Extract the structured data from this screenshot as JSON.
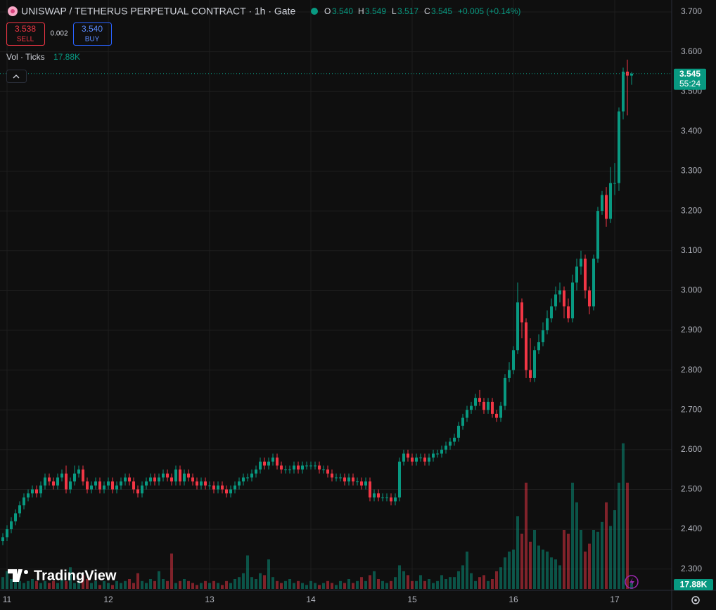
{
  "header": {
    "title": "UNISWAP / TETHERUS PERPETUAL CONTRACT · 1h · Gate",
    "o_label": "O",
    "o": "3.540",
    "h_label": "H",
    "h": "3.549",
    "l_label": "L",
    "l": "3.517",
    "c_label": "C",
    "c": "3.545",
    "change": "+0.005 (+0.14%)",
    "sell_price": "3.538",
    "sell": "SELL",
    "spread": "0.002",
    "buy_price": "3.540",
    "buy": "BUY",
    "vol_label": "Vol · Ticks",
    "vol_value": "17.88K"
  },
  "countdown": "55:24",
  "volume_axis_label": "17.88K",
  "logo": "TradingView",
  "chart_data": {
    "type": "candlestick",
    "up_color": "#089981",
    "down_color": "#f23645",
    "grid": true,
    "ylim": [
      2.25,
      3.73
    ],
    "yticks": [
      {
        "value": 2.3,
        "label": "2.300"
      },
      {
        "value": 2.4,
        "label": "2.400"
      },
      {
        "value": 2.5,
        "label": "2.500"
      },
      {
        "value": 2.6,
        "label": "2.600"
      },
      {
        "value": 2.7,
        "label": "2.700"
      },
      {
        "value": 2.8,
        "label": "2.800"
      },
      {
        "value": 2.9,
        "label": "2.900"
      },
      {
        "value": 3.0,
        "label": "3.000"
      },
      {
        "value": 3.1,
        "label": "3.100"
      },
      {
        "value": 3.2,
        "label": "3.200"
      },
      {
        "value": 3.3,
        "label": "3.300"
      },
      {
        "value": 3.4,
        "label": "3.400"
      },
      {
        "value": 3.5,
        "label": "3.500"
      },
      {
        "value": 3.6,
        "label": "3.600"
      },
      {
        "value": 3.7,
        "label": "3.700"
      }
    ],
    "xticks": [
      {
        "value": 1,
        "label": "11"
      },
      {
        "value": 25,
        "label": "12"
      },
      {
        "value": 49,
        "label": "13"
      },
      {
        "value": 73,
        "label": "14"
      },
      {
        "value": 97,
        "label": "15"
      },
      {
        "value": 121,
        "label": "16"
      },
      {
        "value": 145,
        "label": "17"
      }
    ],
    "open": [
      2.37,
      2.38,
      2.4,
      2.42,
      2.44,
      2.46,
      2.48,
      2.49,
      2.5,
      2.49,
      2.51,
      2.53,
      2.52,
      2.51,
      2.53,
      2.54,
      2.5,
      2.52,
      2.54,
      2.55,
      2.52,
      2.5,
      2.51,
      2.52,
      2.5,
      2.51,
      2.52,
      2.5,
      2.51,
      2.52,
      2.53,
      2.52,
      2.5,
      2.49,
      2.51,
      2.52,
      2.53,
      2.52,
      2.53,
      2.54,
      2.53,
      2.52,
      2.55,
      2.52,
      2.54,
      2.53,
      2.52,
      2.51,
      2.52,
      2.51,
      2.51,
      2.5,
      2.51,
      2.5,
      2.49,
      2.5,
      2.51,
      2.52,
      2.53,
      2.53,
      2.54,
      2.55,
      2.57,
      2.56,
      2.57,
      2.58,
      2.56,
      2.55,
      2.55,
      2.55,
      2.56,
      2.55,
      2.56,
      2.56,
      2.56,
      2.56,
      2.55,
      2.55,
      2.54,
      2.53,
      2.53,
      2.53,
      2.52,
      2.53,
      2.52,
      2.52,
      2.51,
      2.52,
      2.48,
      2.49,
      2.48,
      2.48,
      2.48,
      2.47,
      2.48,
      2.57,
      2.59,
      2.58,
      2.57,
      2.58,
      2.58,
      2.57,
      2.58,
      2.59,
      2.59,
      2.6,
      2.61,
      2.62,
      2.63,
      2.66,
      2.68,
      2.7,
      2.71,
      2.73,
      2.72,
      2.7,
      2.72,
      2.69,
      2.68,
      2.71,
      2.78,
      2.8,
      2.85,
      2.97,
      2.92,
      2.8,
      2.78,
      2.85,
      2.87,
      2.9,
      2.93,
      2.96,
      2.99,
      3.0,
      2.96,
      2.93,
      3.02,
      3.06,
      3.08,
      3.0,
      2.96,
      3.08,
      3.2,
      3.24,
      3.18,
      3.27,
      3.27,
      3.45,
      3.55,
      3.54
    ],
    "high": [
      2.39,
      2.41,
      2.43,
      2.45,
      2.47,
      2.49,
      2.5,
      2.51,
      2.51,
      2.52,
      2.54,
      2.54,
      2.53,
      2.54,
      2.55,
      2.56,
      2.53,
      2.56,
      2.56,
      2.56,
      2.53,
      2.52,
      2.53,
      2.53,
      2.52,
      2.53,
      2.53,
      2.52,
      2.53,
      2.54,
      2.54,
      2.53,
      2.51,
      2.52,
      2.53,
      2.54,
      2.54,
      2.54,
      2.55,
      2.55,
      2.54,
      2.56,
      2.56,
      2.55,
      2.55,
      2.54,
      2.53,
      2.53,
      2.53,
      2.52,
      2.52,
      2.52,
      2.52,
      2.51,
      2.51,
      2.52,
      2.53,
      2.54,
      2.54,
      2.55,
      2.56,
      2.58,
      2.58,
      2.58,
      2.59,
      2.59,
      2.57,
      2.56,
      2.56,
      2.57,
      2.57,
      2.57,
      2.57,
      2.57,
      2.57,
      2.57,
      2.56,
      2.56,
      2.55,
      2.54,
      2.54,
      2.54,
      2.54,
      2.54,
      2.53,
      2.53,
      2.53,
      2.53,
      2.5,
      2.5,
      2.49,
      2.49,
      2.49,
      2.49,
      2.58,
      2.6,
      2.6,
      2.59,
      2.59,
      2.59,
      2.59,
      2.59,
      2.6,
      2.6,
      2.61,
      2.62,
      2.63,
      2.64,
      2.67,
      2.69,
      2.71,
      2.72,
      2.74,
      2.75,
      2.73,
      2.73,
      2.73,
      2.7,
      2.72,
      2.79,
      2.82,
      2.86,
      3.02,
      2.98,
      2.93,
      2.88,
      2.86,
      2.89,
      2.92,
      2.95,
      2.98,
      3.01,
      3.02,
      3.01,
      2.98,
      3.04,
      3.08,
      3.1,
      3.09,
      3.01,
      3.09,
      3.21,
      3.25,
      3.26,
      3.31,
      3.32,
      3.46,
      3.56,
      3.58,
      3.549
    ],
    "low": [
      2.36,
      2.37,
      2.39,
      2.41,
      2.43,
      2.45,
      2.47,
      2.48,
      2.48,
      2.48,
      2.5,
      2.51,
      2.5,
      2.5,
      2.52,
      2.49,
      2.49,
      2.51,
      2.53,
      2.51,
      2.49,
      2.49,
      2.5,
      2.49,
      2.49,
      2.5,
      2.49,
      2.49,
      2.5,
      2.51,
      2.51,
      2.49,
      2.48,
      2.48,
      2.5,
      2.51,
      2.51,
      2.51,
      2.52,
      2.52,
      2.51,
      2.51,
      2.51,
      2.51,
      2.52,
      2.51,
      2.5,
      2.5,
      2.5,
      2.5,
      2.49,
      2.49,
      2.49,
      2.48,
      2.48,
      2.49,
      2.5,
      2.51,
      2.52,
      2.52,
      2.53,
      2.54,
      2.55,
      2.55,
      2.56,
      2.55,
      2.54,
      2.54,
      2.54,
      2.54,
      2.54,
      2.54,
      2.55,
      2.55,
      2.55,
      2.54,
      2.54,
      2.53,
      2.52,
      2.52,
      2.52,
      2.51,
      2.51,
      2.51,
      2.51,
      2.5,
      2.5,
      2.47,
      2.47,
      2.47,
      2.47,
      2.47,
      2.46,
      2.46,
      2.47,
      2.56,
      2.57,
      2.56,
      2.56,
      2.57,
      2.56,
      2.56,
      2.57,
      2.58,
      2.58,
      2.59,
      2.6,
      2.61,
      2.62,
      2.65,
      2.67,
      2.69,
      2.7,
      2.71,
      2.69,
      2.69,
      2.68,
      2.67,
      2.67,
      2.7,
      2.77,
      2.79,
      2.84,
      2.88,
      2.78,
      2.77,
      2.77,
      2.84,
      2.86,
      2.89,
      2.92,
      2.95,
      2.97,
      2.93,
      2.92,
      2.92,
      3.0,
      3.04,
      2.98,
      2.94,
      2.95,
      3.07,
      3.19,
      3.16,
      3.17,
      3.24,
      3.25,
      3.43,
      3.44,
      3.517
    ],
    "close": [
      2.38,
      2.4,
      2.42,
      2.44,
      2.46,
      2.48,
      2.49,
      2.5,
      2.49,
      2.51,
      2.53,
      2.52,
      2.51,
      2.53,
      2.54,
      2.5,
      2.52,
      2.54,
      2.55,
      2.52,
      2.5,
      2.51,
      2.52,
      2.5,
      2.51,
      2.52,
      2.5,
      2.51,
      2.52,
      2.53,
      2.52,
      2.5,
      2.49,
      2.51,
      2.52,
      2.53,
      2.52,
      2.53,
      2.54,
      2.53,
      2.52,
      2.55,
      2.52,
      2.54,
      2.53,
      2.52,
      2.51,
      2.52,
      2.51,
      2.51,
      2.5,
      2.51,
      2.5,
      2.49,
      2.5,
      2.51,
      2.52,
      2.53,
      2.53,
      2.54,
      2.55,
      2.57,
      2.56,
      2.57,
      2.58,
      2.56,
      2.55,
      2.55,
      2.55,
      2.56,
      2.55,
      2.56,
      2.56,
      2.56,
      2.56,
      2.55,
      2.55,
      2.54,
      2.53,
      2.53,
      2.53,
      2.52,
      2.53,
      2.52,
      2.52,
      2.51,
      2.52,
      2.48,
      2.49,
      2.48,
      2.48,
      2.48,
      2.47,
      2.48,
      2.57,
      2.59,
      2.58,
      2.57,
      2.58,
      2.58,
      2.57,
      2.58,
      2.59,
      2.59,
      2.6,
      2.61,
      2.62,
      2.63,
      2.66,
      2.68,
      2.7,
      2.71,
      2.73,
      2.72,
      2.7,
      2.72,
      2.69,
      2.68,
      2.71,
      2.78,
      2.8,
      2.85,
      2.97,
      2.92,
      2.8,
      2.78,
      2.85,
      2.87,
      2.9,
      2.93,
      2.96,
      2.99,
      3.0,
      2.96,
      2.93,
      3.02,
      3.06,
      3.08,
      3.0,
      2.96,
      3.08,
      3.2,
      3.24,
      3.18,
      3.27,
      3.27,
      3.45,
      3.55,
      3.54,
      3.545
    ],
    "volume": [
      30,
      45,
      25,
      20,
      20,
      15,
      20,
      25,
      20,
      15,
      20,
      15,
      20,
      15,
      25,
      20,
      55,
      15,
      20,
      35,
      25,
      15,
      20,
      10,
      20,
      15,
      10,
      20,
      15,
      20,
      25,
      15,
      40,
      20,
      15,
      25,
      20,
      45,
      25,
      20,
      90,
      15,
      20,
      25,
      20,
      15,
      10,
      15,
      20,
      15,
      20,
      15,
      10,
      20,
      15,
      25,
      30,
      40,
      85,
      30,
      25,
      40,
      35,
      75,
      30,
      20,
      15,
      20,
      25,
      15,
      20,
      15,
      10,
      20,
      15,
      10,
      15,
      20,
      15,
      10,
      20,
      15,
      25,
      15,
      20,
      30,
      20,
      35,
      45,
      25,
      20,
      15,
      20,
      30,
      60,
      45,
      35,
      20,
      20,
      35,
      20,
      25,
      15,
      20,
      35,
      25,
      30,
      30,
      45,
      60,
      95,
      40,
      20,
      30,
      35,
      20,
      25,
      45,
      55,
      80,
      95,
      100,
      185,
      140,
      270,
      120,
      150,
      110,
      100,
      95,
      80,
      75,
      60,
      150,
      140,
      270,
      220,
      150,
      95,
      115,
      150,
      145,
      170,
      220,
      160,
      200,
      270,
      370,
      270,
      17.88
    ]
  }
}
